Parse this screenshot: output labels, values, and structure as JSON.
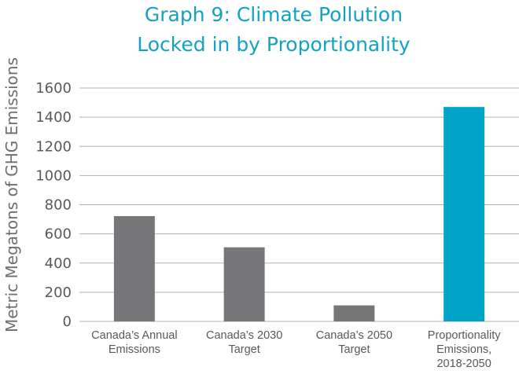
{
  "chart_data": {
    "type": "bar",
    "title": [
      "Graph 9: Climate Pollution",
      "Locked in by Proportionality"
    ],
    "ylabel": "Metric Megatons of GHG Emissions",
    "xlabel": "",
    "ylim": [
      0,
      1600
    ],
    "yticks": [
      0,
      200,
      400,
      600,
      800,
      1000,
      1200,
      1400,
      1600
    ],
    "grid": true,
    "categories": [
      [
        "Canada’s Annual",
        "Emissions"
      ],
      [
        "Canada’s 2030",
        "Target"
      ],
      [
        "Canada’s 2050",
        "Target"
      ],
      [
        "Proportionality",
        "Emissions,",
        "2018-2050"
      ]
    ],
    "values": [
      722,
      508,
      110,
      1470
    ],
    "colors": [
      "#77777a",
      "#77777a",
      "#77777a",
      "#00a4c7"
    ],
    "grid_color": "#b3b3b3",
    "title_color": "#12a3c2"
  }
}
